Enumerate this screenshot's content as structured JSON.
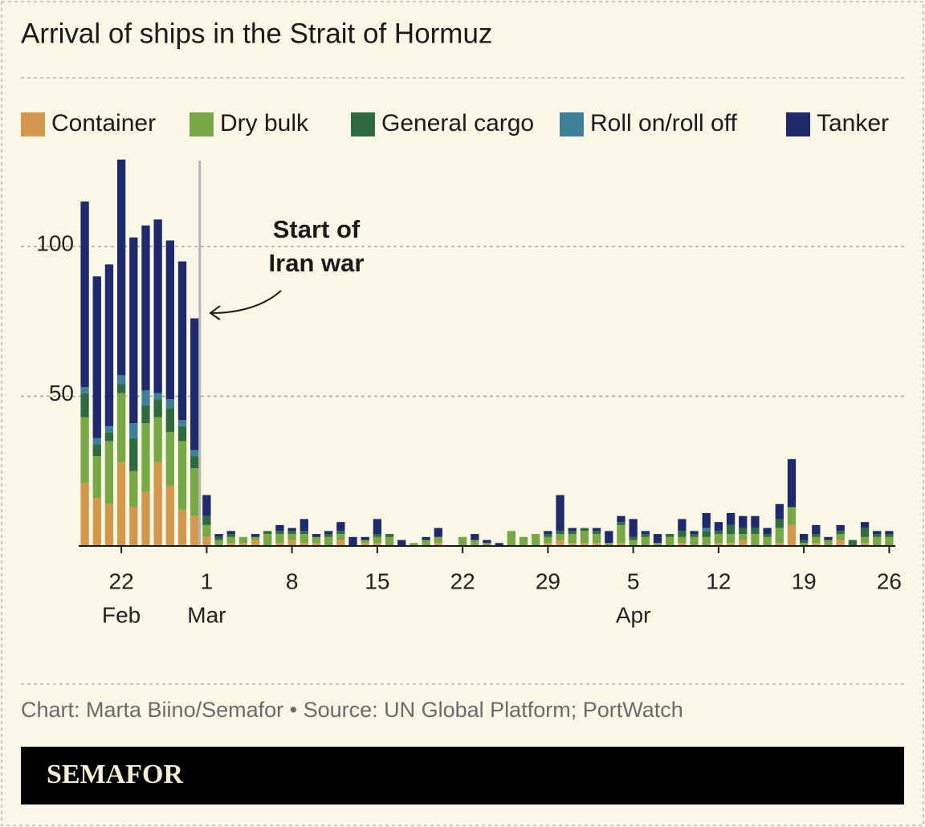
{
  "chart_data": {
    "type": "stacked_bar",
    "title": "Arrival of ships in the Strait of Hormuz",
    "annotation": [
      "Start of",
      "Iran war"
    ],
    "source": "Chart: Marta Biino/Semafor • Source: UN Global Platform; PortWatch",
    "brand": "SEMAFOR",
    "categories": [
      null,
      null,
      null,
      "22",
      null,
      null,
      null,
      null,
      null,
      null,
      "1",
      null,
      null,
      null,
      null,
      null,
      null,
      "8",
      null,
      null,
      null,
      null,
      null,
      null,
      "15",
      null,
      null,
      null,
      null,
      null,
      null,
      "22",
      null,
      null,
      null,
      null,
      null,
      null,
      "29",
      null,
      null,
      null,
      null,
      null,
      null,
      "5",
      null,
      null,
      null,
      null,
      null,
      null,
      "12",
      null,
      null,
      null,
      null,
      null,
      null,
      "19",
      null,
      null,
      null,
      null,
      null,
      null,
      "26"
    ],
    "month_labels": [
      {
        "label": "Feb",
        "category": 3
      },
      {
        "label": "Mar",
        "category": 10
      },
      {
        "label": "Apr",
        "category": 45
      }
    ],
    "series": [
      {
        "name": "Container",
        "color": "#d4984c",
        "values": [
          21,
          16,
          14,
          28,
          13,
          18,
          28,
          20,
          12,
          10,
          3,
          0,
          1,
          1,
          2,
          0,
          1,
          2,
          1,
          1,
          0,
          2,
          0,
          1,
          1,
          0,
          0,
          0,
          0,
          1,
          0,
          0,
          0,
          0,
          0,
          0,
          0,
          0,
          1,
          2,
          1,
          1,
          1,
          0,
          1,
          0,
          0,
          0,
          0,
          1,
          0,
          0,
          1,
          1,
          2,
          0,
          0,
          1,
          7,
          0,
          1,
          0,
          2,
          0,
          1,
          0,
          0
        ]
      },
      {
        "name": "Dry bulk",
        "color": "#78a845",
        "values": [
          22,
          14,
          21,
          23,
          12,
          23,
          15,
          18,
          23,
          16,
          4,
          2,
          2,
          2,
          1,
          4,
          3,
          2,
          3,
          2,
          3,
          2,
          0,
          1,
          2,
          3,
          0,
          1,
          2,
          2,
          0,
          3,
          2,
          1,
          0,
          5,
          3,
          4,
          2,
          2,
          3,
          4,
          3,
          1,
          6,
          2,
          3,
          1,
          3,
          2,
          3,
          3,
          3,
          3,
          2,
          4,
          3,
          5,
          6,
          1,
          2,
          2,
          2,
          0,
          2,
          3,
          3
        ]
      },
      {
        "name": "General cargo",
        "color": "#2f6b40",
        "values": [
          8,
          4,
          3,
          3,
          11,
          6,
          6,
          8,
          5,
          4,
          3,
          1,
          1,
          0,
          0,
          1,
          1,
          1,
          1,
          0,
          1,
          1,
          0,
          0,
          1,
          1,
          0,
          0,
          0,
          0,
          0,
          0,
          0,
          0,
          0,
          0,
          0,
          0,
          1,
          1,
          1,
          1,
          1,
          0,
          1,
          1,
          1,
          0,
          1,
          2,
          1,
          2,
          1,
          3,
          2,
          2,
          1,
          3,
          0,
          1,
          1,
          0,
          1,
          2,
          3,
          1,
          1
        ]
      },
      {
        "name": "Roll on/roll off",
        "color": "#3e809a",
        "values": [
          2,
          2,
          2,
          3,
          5,
          5,
          2,
          3,
          2,
          2,
          0,
          0,
          0,
          0,
          0,
          0,
          0,
          0,
          0,
          0,
          0,
          0,
          0,
          0,
          0,
          0,
          0,
          0,
          0,
          0,
          0,
          0,
          0,
          0,
          0,
          0,
          0,
          0,
          0,
          0,
          0,
          0,
          0,
          0,
          0,
          0,
          0,
          0,
          0,
          0,
          0,
          1,
          0,
          0,
          0,
          0,
          0,
          0,
          0,
          0,
          0,
          0,
          0,
          0,
          0,
          0,
          0
        ]
      },
      {
        "name": "Tanker",
        "color": "#1e2a6c",
        "values": [
          62,
          54,
          54,
          72,
          62,
          55,
          58,
          53,
          53,
          44,
          7,
          1,
          1,
          0,
          1,
          0,
          2,
          1,
          4,
          1,
          1,
          3,
          3,
          1,
          5,
          0,
          2,
          0,
          1,
          3,
          0,
          0,
          2,
          1,
          1,
          0,
          0,
          0,
          1,
          12,
          1,
          0,
          1,
          4,
          2,
          6,
          1,
          3,
          0,
          4,
          1,
          5,
          3,
          4,
          4,
          4,
          2,
          5,
          16,
          2,
          3,
          1,
          2,
          0,
          2,
          1,
          1
        ]
      }
    ],
    "ylim": [
      0,
      130
    ],
    "yticks": [
      50,
      100
    ],
    "grid": true
  }
}
